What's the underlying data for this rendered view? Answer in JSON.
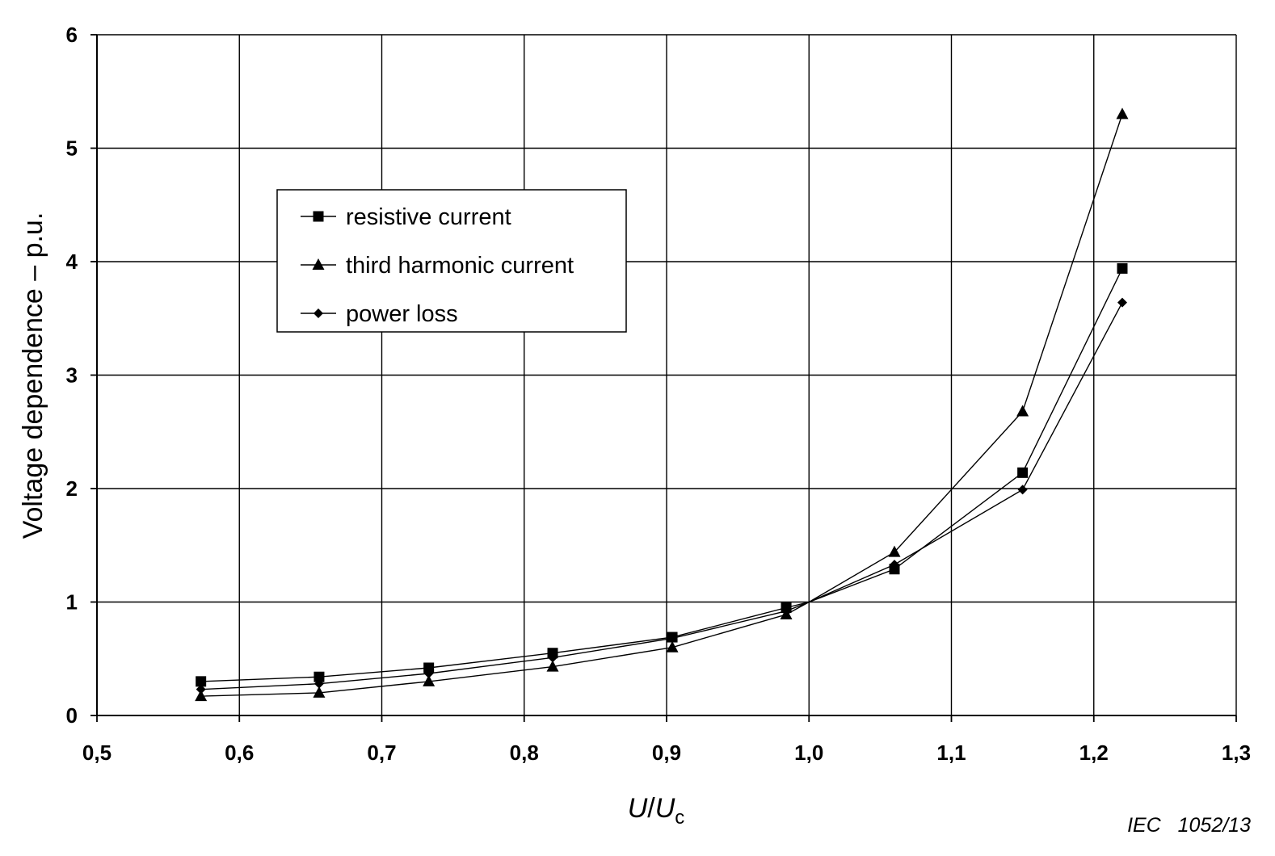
{
  "chart_data": {
    "type": "line",
    "xlabel_main": "U",
    "xlabel_slash": "/",
    "xlabel_denom": "U",
    "xlabel_sub": "c",
    "ylabel": "Voltage dependence – p.u.",
    "xlim": [
      0.5,
      1.3
    ],
    "ylim": [
      0,
      6
    ],
    "x_ticks": [
      0.5,
      0.6,
      0.7,
      0.8,
      0.9,
      1.0,
      1.1,
      1.2,
      1.3
    ],
    "x_tick_labels": [
      "0,5",
      "0,6",
      "0,7",
      "0,8",
      "0,9",
      "1,0",
      "1,1",
      "1,2",
      "1,3"
    ],
    "y_ticks": [
      0,
      1,
      2,
      3,
      4,
      5,
      6
    ],
    "y_tick_labels": [
      "0",
      "1",
      "2",
      "3",
      "4",
      "5",
      "6"
    ],
    "grid": true,
    "legend_position": "upper-left",
    "series": [
      {
        "name": "resistive current",
        "marker": "square",
        "points": [
          [
            0.573,
            0.3
          ],
          [
            0.656,
            0.34
          ],
          [
            0.733,
            0.42
          ],
          [
            0.82,
            0.55
          ],
          [
            0.904,
            0.69
          ],
          [
            0.984,
            0.95
          ],
          [
            1.0,
            1.0
          ],
          [
            1.06,
            1.29
          ],
          [
            1.15,
            2.14
          ],
          [
            1.22,
            3.94
          ]
        ]
      },
      {
        "name": "third harmonic current",
        "marker": "triangle",
        "points": [
          [
            0.573,
            0.17
          ],
          [
            0.656,
            0.2
          ],
          [
            0.733,
            0.3
          ],
          [
            0.82,
            0.43
          ],
          [
            0.904,
            0.6
          ],
          [
            0.984,
            0.89
          ],
          [
            1.0,
            1.0
          ],
          [
            1.06,
            1.44
          ],
          [
            1.15,
            2.68
          ],
          [
            1.22,
            5.3
          ]
        ]
      },
      {
        "name": "power loss",
        "marker": "diamond",
        "points": [
          [
            0.573,
            0.23
          ],
          [
            0.656,
            0.28
          ],
          [
            0.733,
            0.37
          ],
          [
            0.82,
            0.51
          ],
          [
            0.904,
            0.68
          ],
          [
            0.984,
            0.92
          ],
          [
            1.0,
            1.0
          ],
          [
            1.06,
            1.33
          ],
          [
            1.15,
            1.99
          ],
          [
            1.22,
            3.64
          ]
        ]
      }
    ],
    "source_note": "IEC   1052/13"
  }
}
